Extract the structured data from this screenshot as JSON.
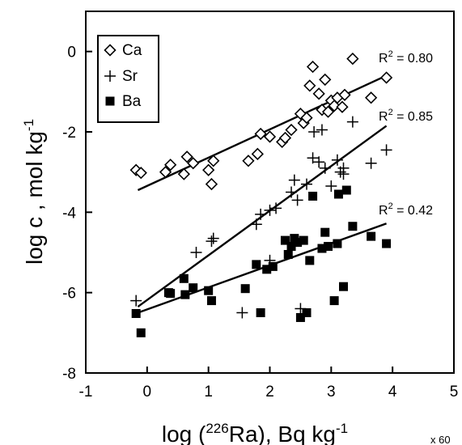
{
  "chart_data": {
    "type": "scatter",
    "xlabel": {
      "prefix": "log (",
      "sup": "226",
      "main": "Ra), Bq kg",
      "sup2": "-1"
    },
    "ylabel": {
      "main": "log c , mol kg",
      "sup": "-1"
    },
    "xlim": [
      -1,
      5
    ],
    "ylim": [
      -8,
      1
    ],
    "xticks": [
      -1,
      0,
      1,
      2,
      3,
      4,
      5
    ],
    "yticks": [
      0,
      -2,
      -4,
      -6,
      -8
    ],
    "x_multiplier_label": "x 60",
    "legend": {
      "position": "top-left",
      "entries": [
        "Ca",
        "Sr",
        "Ba"
      ]
    },
    "series": [
      {
        "name": "Ca",
        "marker": "diamond-open",
        "points": [
          [
            -0.18,
            -2.95
          ],
          [
            -0.1,
            -3.02
          ],
          [
            0.3,
            -3.0
          ],
          [
            0.38,
            -2.82
          ],
          [
            0.6,
            -3.05
          ],
          [
            0.65,
            -2.62
          ],
          [
            0.75,
            -2.78
          ],
          [
            1.0,
            -2.95
          ],
          [
            1.05,
            -3.3
          ],
          [
            1.08,
            -2.72
          ],
          [
            1.65,
            -2.72
          ],
          [
            1.8,
            -2.55
          ],
          [
            1.85,
            -2.05
          ],
          [
            2.0,
            -2.12
          ],
          [
            2.2,
            -2.25
          ],
          [
            2.25,
            -2.15
          ],
          [
            2.35,
            -1.95
          ],
          [
            2.5,
            -1.55
          ],
          [
            2.55,
            -1.78
          ],
          [
            2.6,
            -1.65
          ],
          [
            2.65,
            -0.85
          ],
          [
            2.7,
            -0.38
          ],
          [
            2.8,
            -1.05
          ],
          [
            2.85,
            -1.45
          ],
          [
            2.9,
            -0.7
          ],
          [
            3.0,
            -1.22
          ],
          [
            3.05,
            -1.35
          ],
          [
            3.1,
            -1.15
          ],
          [
            3.18,
            -1.38
          ],
          [
            3.22,
            -1.08
          ],
          [
            3.35,
            -0.18
          ],
          [
            3.65,
            -1.15
          ],
          [
            3.9,
            -0.65
          ],
          [
            2.95,
            -1.5
          ]
        ]
      },
      {
        "name": "Sr",
        "marker": "plus",
        "points": [
          [
            -0.18,
            -6.2
          ],
          [
            0.8,
            -5.0
          ],
          [
            1.05,
            -4.72
          ],
          [
            1.08,
            -4.65
          ],
          [
            1.55,
            -6.5
          ],
          [
            1.78,
            -4.3
          ],
          [
            1.85,
            -4.05
          ],
          [
            2.0,
            -3.95
          ],
          [
            2.1,
            -3.9
          ],
          [
            2.35,
            -3.5
          ],
          [
            2.4,
            -3.2
          ],
          [
            2.45,
            -3.7
          ],
          [
            2.6,
            -3.3
          ],
          [
            2.7,
            -2.65
          ],
          [
            2.72,
            -2.0
          ],
          [
            2.8,
            -2.75
          ],
          [
            2.85,
            -1.95
          ],
          [
            2.9,
            -2.9
          ],
          [
            3.0,
            -3.35
          ],
          [
            3.1,
            -2.7
          ],
          [
            3.15,
            -3.0
          ],
          [
            3.2,
            -2.9
          ],
          [
            3.35,
            -1.75
          ],
          [
            3.65,
            -2.78
          ],
          [
            3.9,
            -2.45
          ],
          [
            2.0,
            -5.2
          ],
          [
            2.5,
            -6.4
          ],
          [
            3.2,
            -3.05
          ]
        ]
      },
      {
        "name": "Ba",
        "marker": "square-filled",
        "points": [
          [
            -0.18,
            -6.52
          ],
          [
            -0.1,
            -7.0
          ],
          [
            0.35,
            -6.0
          ],
          [
            0.38,
            -6.02
          ],
          [
            0.6,
            -5.65
          ],
          [
            0.62,
            -6.05
          ],
          [
            0.75,
            -5.88
          ],
          [
            1.0,
            -5.95
          ],
          [
            1.05,
            -6.2
          ],
          [
            1.6,
            -5.9
          ],
          [
            1.78,
            -5.3
          ],
          [
            1.85,
            -6.5
          ],
          [
            1.95,
            -5.42
          ],
          [
            2.05,
            -5.35
          ],
          [
            2.25,
            -4.7
          ],
          [
            2.3,
            -5.05
          ],
          [
            2.35,
            -4.85
          ],
          [
            2.4,
            -4.65
          ],
          [
            2.45,
            -4.75
          ],
          [
            2.5,
            -6.62
          ],
          [
            2.55,
            -4.7
          ],
          [
            2.6,
            -6.5
          ],
          [
            2.65,
            -5.2
          ],
          [
            2.7,
            -3.6
          ],
          [
            2.85,
            -4.9
          ],
          [
            2.9,
            -4.5
          ],
          [
            2.95,
            -4.85
          ],
          [
            3.05,
            -6.2
          ],
          [
            3.1,
            -4.78
          ],
          [
            3.12,
            -3.55
          ],
          [
            3.2,
            -5.85
          ],
          [
            3.25,
            -3.45
          ],
          [
            3.35,
            -4.35
          ],
          [
            3.65,
            -4.6
          ],
          [
            3.9,
            -4.78
          ]
        ]
      }
    ],
    "fits": [
      {
        "series": "Ca",
        "x0": -0.15,
        "y0": -3.45,
        "x1": 3.9,
        "y1": -0.6,
        "label": "R",
        "sup": "2",
        "value": " = 0.80"
      },
      {
        "series": "Sr",
        "x0": -0.15,
        "y0": -6.35,
        "x1": 3.9,
        "y1": -1.85,
        "label": "R",
        "sup": "2",
        "value": " = 0.85"
      },
      {
        "series": "Ba",
        "x0": -0.15,
        "y0": -6.5,
        "x1": 3.9,
        "y1": -4.28,
        "label": "R",
        "sup": "2",
        "value": " = 0.42"
      }
    ]
  }
}
